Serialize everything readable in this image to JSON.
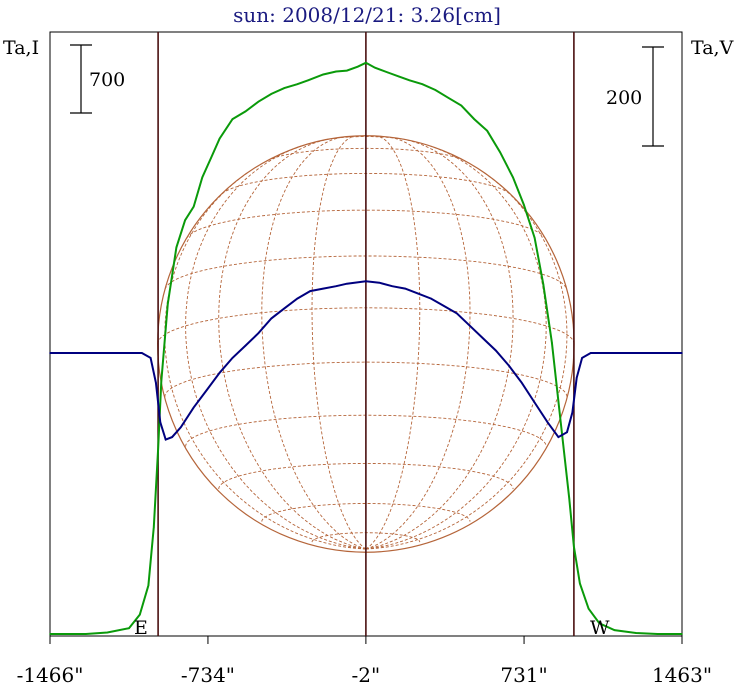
{
  "chart_data": {
    "type": "line",
    "title": "sun: 2008/12/21: 3.26[cm]",
    "left_axis_label": "Ta,I",
    "right_axis_label": "Ta,V",
    "scale_bars": {
      "left": "700",
      "right": "200"
    },
    "x_ticks": [
      {
        "value": -1466,
        "label": "-1466\""
      },
      {
        "value": -734,
        "label": "-734\""
      },
      {
        "value": -2,
        "label": "-2\""
      },
      {
        "value": 731,
        "label": "731\""
      },
      {
        "value": 1463,
        "label": "1463\""
      }
    ],
    "xlim": [
      -1466,
      1463
    ],
    "limb_labels": {
      "east": "E",
      "west": "W"
    },
    "vertical_lines_x": [
      -965,
      -2,
      962
    ],
    "disk": {
      "center_x": -2,
      "radius": 965,
      "meridian_longitudes": [
        -75,
        -60,
        -45,
        -30,
        -15,
        0,
        15,
        30,
        45,
        60,
        75
      ],
      "parallel_latitudes": [
        -75,
        -60,
        -45,
        -30,
        -15,
        0,
        15,
        30,
        45,
        60,
        75
      ],
      "b0_deg": -10
    },
    "series": [
      {
        "color": "#0a9a0a",
        "axis": "left",
        "unit_per_scalebar": 700,
        "points": [
          [
            -1466,
            0
          ],
          [
            -1300,
            0
          ],
          [
            -1200,
            15
          ],
          [
            -1100,
            60
          ],
          [
            -1050,
            200
          ],
          [
            -1010,
            500
          ],
          [
            -985,
            1100
          ],
          [
            -965,
            1900
          ],
          [
            -950,
            2600
          ],
          [
            -920,
            3400
          ],
          [
            -880,
            3980
          ],
          [
            -840,
            4260
          ],
          [
            -800,
            4400
          ],
          [
            -760,
            4700
          ],
          [
            -720,
            4900
          ],
          [
            -680,
            5100
          ],
          [
            -620,
            5300
          ],
          [
            -560,
            5380
          ],
          [
            -500,
            5480
          ],
          [
            -440,
            5560
          ],
          [
            -380,
            5620
          ],
          [
            -320,
            5660
          ],
          [
            -270,
            5700
          ],
          [
            -200,
            5760
          ],
          [
            -140,
            5790
          ],
          [
            -90,
            5800
          ],
          [
            -40,
            5840
          ],
          [
            -2,
            5880
          ],
          [
            40,
            5830
          ],
          [
            100,
            5780
          ],
          [
            150,
            5740
          ],
          [
            200,
            5700
          ],
          [
            260,
            5660
          ],
          [
            320,
            5600
          ],
          [
            380,
            5520
          ],
          [
            440,
            5440
          ],
          [
            500,
            5300
          ],
          [
            560,
            5180
          ],
          [
            620,
            4960
          ],
          [
            680,
            4700
          ],
          [
            730,
            4420
          ],
          [
            780,
            4080
          ],
          [
            820,
            3600
          ],
          [
            860,
            3000
          ],
          [
            900,
            2200
          ],
          [
            940,
            1400
          ],
          [
            962,
            900
          ],
          [
            990,
            520
          ],
          [
            1030,
            260
          ],
          [
            1080,
            110
          ],
          [
            1150,
            40
          ],
          [
            1250,
            10
          ],
          [
            1350,
            0
          ],
          [
            1463,
            0
          ]
        ]
      },
      {
        "color": "#00007f",
        "axis": "right",
        "unit_per_scalebar": 200,
        "points": [
          [
            -1466,
            0
          ],
          [
            -1100,
            0
          ],
          [
            -1040,
            0
          ],
          [
            -1000,
            -10
          ],
          [
            -975,
            -60
          ],
          [
            -955,
            -140
          ],
          [
            -930,
            -175
          ],
          [
            -900,
            -170
          ],
          [
            -860,
            -150
          ],
          [
            -800,
            -110
          ],
          [
            -740,
            -75
          ],
          [
            -680,
            -40
          ],
          [
            -620,
            -10
          ],
          [
            -560,
            15
          ],
          [
            -500,
            40
          ],
          [
            -440,
            70
          ],
          [
            -380,
            90
          ],
          [
            -320,
            110
          ],
          [
            -260,
            125
          ],
          [
            -200,
            130
          ],
          [
            -140,
            135
          ],
          [
            -90,
            140
          ],
          [
            -2,
            145
          ],
          [
            60,
            142
          ],
          [
            120,
            135
          ],
          [
            180,
            130
          ],
          [
            240,
            120
          ],
          [
            300,
            110
          ],
          [
            360,
            95
          ],
          [
            420,
            80
          ],
          [
            480,
            55
          ],
          [
            540,
            30
          ],
          [
            600,
            5
          ],
          [
            660,
            -25
          ],
          [
            720,
            -60
          ],
          [
            780,
            -100
          ],
          [
            840,
            -140
          ],
          [
            890,
            -170
          ],
          [
            930,
            -160
          ],
          [
            955,
            -120
          ],
          [
            975,
            -50
          ],
          [
            1000,
            -10
          ],
          [
            1040,
            0
          ],
          [
            1463,
            0
          ]
        ]
      }
    ]
  }
}
